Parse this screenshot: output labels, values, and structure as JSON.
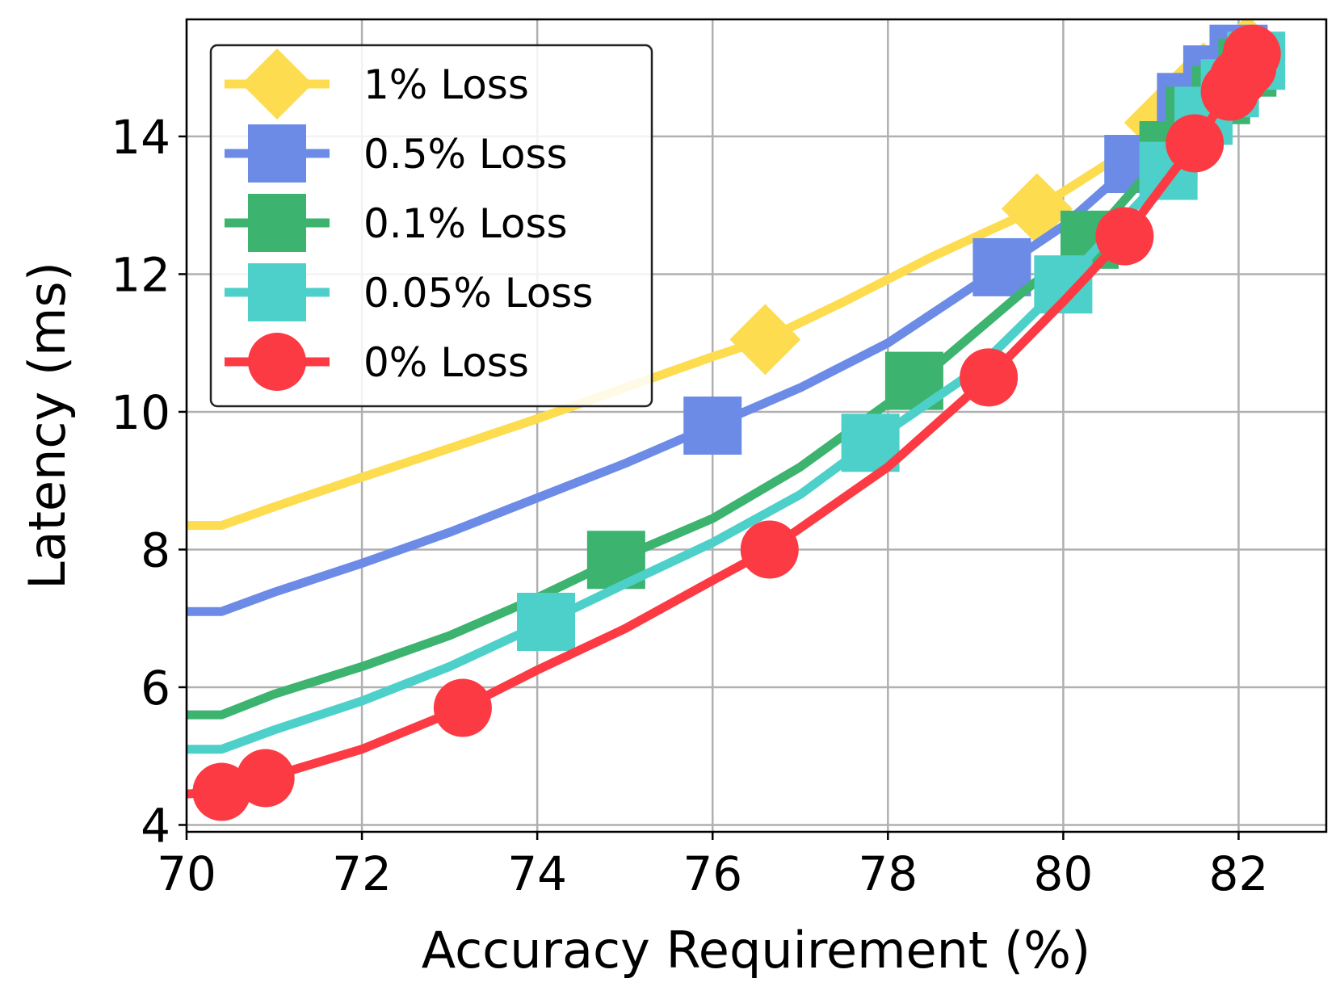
{
  "chart_data": {
    "type": "line",
    "title": "",
    "xlabel": "Accuracy Requirement (%)",
    "ylabel": "Latency (ms)",
    "xlim": [
      70,
      83
    ],
    "ylim": [
      3.9,
      15.7
    ],
    "xticks": [
      70,
      72,
      74,
      76,
      78,
      80,
      82
    ],
    "yticks": [
      4,
      6,
      8,
      10,
      12,
      14
    ],
    "grid": true,
    "legend_position": "top-left",
    "series": [
      {
        "name": "1% Loss",
        "color": "#FDDC4F",
        "marker": "diamond",
        "line_x": [
          70.0,
          70.4,
          71.0,
          72.0,
          73.0,
          74.0,
          75.0,
          76.0,
          76.6,
          77.5,
          78.5,
          79.7,
          80.5,
          81.2,
          81.8,
          82.2
        ],
        "line_y": [
          8.35,
          8.35,
          8.62,
          9.05,
          9.47,
          9.9,
          10.35,
          10.8,
          11.05,
          11.6,
          12.25,
          12.95,
          13.6,
          14.3,
          14.9,
          15.25
        ],
        "marker_x": [
          76.6,
          79.7,
          81.1,
          81.6,
          82.1
        ],
        "marker_y": [
          11.05,
          12.95,
          14.2,
          14.85,
          15.25
        ]
      },
      {
        "name": "0.5% Loss",
        "color": "#6B8BE6",
        "marker": "square",
        "line_x": [
          70.0,
          70.4,
          71.0,
          72.0,
          73.0,
          74.0,
          75.0,
          76.0,
          77.0,
          78.0,
          79.3,
          80.0,
          80.8,
          81.5,
          82.0
        ],
        "line_y": [
          7.1,
          7.1,
          7.38,
          7.8,
          8.25,
          8.75,
          9.25,
          9.8,
          10.35,
          11.0,
          12.1,
          12.7,
          13.6,
          14.55,
          15.2
        ],
        "marker_x": [
          76.0,
          79.3,
          80.8,
          81.4,
          81.7,
          82.0
        ],
        "marker_y": [
          9.8,
          12.1,
          13.6,
          14.5,
          14.9,
          15.2
        ]
      },
      {
        "name": "0.1% Loss",
        "color": "#3DB370",
        "marker": "square",
        "line_x": [
          70.0,
          70.4,
          71.0,
          72.0,
          73.0,
          74.0,
          74.9,
          76.0,
          77.0,
          78.3,
          79.5,
          80.3,
          81.2,
          81.5,
          82.0
        ],
        "line_y": [
          5.6,
          5.6,
          5.9,
          6.3,
          6.75,
          7.3,
          7.85,
          8.45,
          9.2,
          10.4,
          11.7,
          12.5,
          13.8,
          14.1,
          14.9
        ],
        "marker_x": [
          74.9,
          78.3,
          80.3,
          81.2,
          81.5,
          81.8,
          82.1
        ],
        "marker_y": [
          7.85,
          10.45,
          12.5,
          13.8,
          14.3,
          14.6,
          15.0
        ]
      },
      {
        "name": "0.05% Loss",
        "color": "#4DD0C9",
        "marker": "square",
        "line_x": [
          70.0,
          70.4,
          71.0,
          72.0,
          73.0,
          74.1,
          75.0,
          76.0,
          77.0,
          77.8,
          79.0,
          80.0,
          81.2,
          81.7,
          82.1
        ],
        "line_y": [
          5.1,
          5.1,
          5.38,
          5.8,
          6.3,
          6.95,
          7.5,
          8.1,
          8.8,
          9.55,
          10.6,
          11.85,
          13.5,
          14.3,
          15.0
        ],
        "marker_x": [
          74.1,
          77.8,
          80.0,
          81.2,
          81.6,
          81.9,
          82.2
        ],
        "marker_y": [
          6.95,
          9.55,
          11.85,
          13.5,
          14.3,
          14.7,
          15.1
        ]
      },
      {
        "name": "0% Loss",
        "color": "#FC3A44",
        "marker": "circle",
        "line_x": [
          70.0,
          70.4,
          70.9,
          72.0,
          73.15,
          74.0,
          75.0,
          76.0,
          76.65,
          78.0,
          79.15,
          80.0,
          80.7,
          81.5,
          81.9,
          82.15
        ],
        "line_y": [
          4.45,
          4.48,
          4.68,
          5.1,
          5.7,
          6.25,
          6.85,
          7.55,
          8.0,
          9.2,
          10.5,
          11.6,
          12.55,
          13.9,
          14.65,
          15.2
        ],
        "marker_x": [
          70.4,
          70.9,
          73.15,
          76.65,
          79.15,
          80.7,
          81.5,
          81.9,
          82.0,
          82.1,
          82.15
        ],
        "marker_y": [
          4.48,
          4.68,
          5.7,
          8.0,
          10.5,
          12.55,
          13.9,
          14.65,
          14.85,
          15.0,
          15.2
        ]
      }
    ]
  }
}
